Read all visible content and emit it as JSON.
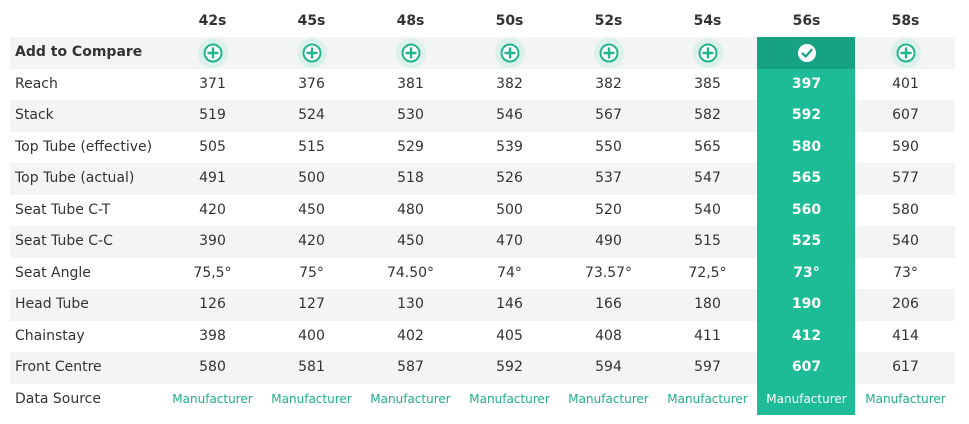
{
  "table": {
    "columns": [
      "42s",
      "45s",
      "48s",
      "50s",
      "52s",
      "54s",
      "56s",
      "58s"
    ],
    "compare_label": "Add to Compare",
    "rows": [
      {
        "label": "Reach",
        "values": [
          "371",
          "376",
          "381",
          "382",
          "382",
          "385",
          "397",
          "401"
        ]
      },
      {
        "label": "Stack",
        "values": [
          "519",
          "524",
          "530",
          "546",
          "567",
          "582",
          "592",
          "607"
        ]
      },
      {
        "label": "Top Tube (effective)",
        "values": [
          "505",
          "515",
          "529",
          "539",
          "550",
          "565",
          "580",
          "590"
        ]
      },
      {
        "label": "Top Tube (actual)",
        "values": [
          "491",
          "500",
          "518",
          "526",
          "537",
          "547",
          "565",
          "577"
        ]
      },
      {
        "label": "Seat Tube C-T",
        "values": [
          "420",
          "450",
          "480",
          "500",
          "520",
          "540",
          "560",
          "580"
        ]
      },
      {
        "label": "Seat Tube C-C",
        "values": [
          "390",
          "420",
          "450",
          "470",
          "490",
          "515",
          "525",
          "540"
        ]
      },
      {
        "label": "Seat Angle",
        "values": [
          "75,5°",
          "75°",
          "74.50°",
          "74°",
          "73.57°",
          "72,5°",
          "73°",
          "73°"
        ]
      },
      {
        "label": "Head Tube",
        "values": [
          "126",
          "127",
          "130",
          "146",
          "166",
          "180",
          "190",
          "206"
        ]
      },
      {
        "label": "Chainstay",
        "values": [
          "398",
          "400",
          "402",
          "405",
          "408",
          "411",
          "412",
          "414"
        ]
      },
      {
        "label": "Front Centre",
        "values": [
          "580",
          "581",
          "587",
          "592",
          "594",
          "597",
          "607",
          "617"
        ]
      }
    ],
    "source": {
      "label": "Data Source",
      "values": [
        "Manufacturer",
        "Manufacturer",
        "Manufacturer",
        "Manufacturer",
        "Manufacturer",
        "Manufacturer",
        "Manufacturer",
        "Manufacturer"
      ]
    }
  }
}
